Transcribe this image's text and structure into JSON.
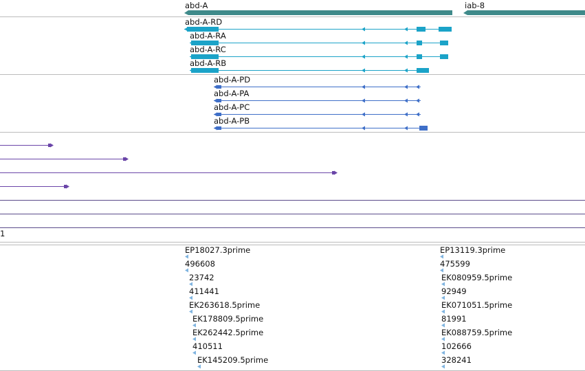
{
  "colors": {
    "gene": "#3f8a8a",
    "transcript": "#1ba3c8",
    "protein": "#3f6fc8",
    "feature": "#6a45a8",
    "est": "#7fb4e0",
    "divider": "#bbbbbb",
    "hline": "#5a4a8a"
  },
  "genes": [
    {
      "name": "abd-A"
    },
    {
      "name": "iab-8"
    }
  ],
  "transcripts": [
    {
      "name": "abd-A-RD"
    },
    {
      "name": "abd-A-RA"
    },
    {
      "name": "abd-A-RC"
    },
    {
      "name": "abd-A-RB"
    }
  ],
  "proteins": [
    {
      "name": "abd-A-PD"
    },
    {
      "name": "abd-A-PA"
    },
    {
      "name": "abd-A-PC"
    },
    {
      "name": "abd-A-PB"
    }
  ],
  "ruler_label": "1",
  "ests_left": [
    "EP18027.3prime",
    "496608",
    "23742",
    "411441",
    "EK263618.5prime",
    "EK178809.5prime",
    "EK262442.5prime",
    "410511",
    "EK145209.5prime"
  ],
  "ests_right": [
    "EP13119.3prime",
    "475599",
    "EK080959.5prime",
    "92949",
    "EK071051.5prime",
    "81991",
    "EK088759.5prime",
    "102666",
    "328241"
  ]
}
